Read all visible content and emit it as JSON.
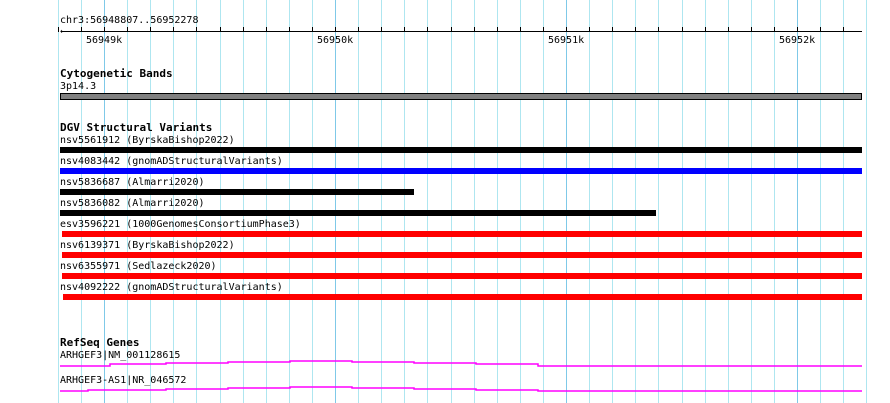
{
  "ruler": {
    "region": "chr3:56948807..56952278",
    "start": 56948807,
    "end": 56952278,
    "labels": [
      "56949k",
      "56950k",
      "56951k",
      "56952k"
    ]
  },
  "tracks": {
    "cyto": {
      "title": "Cytogenetic Bands",
      "band": "3p14.3",
      "color": "#808080"
    },
    "dgv": {
      "title": "DGV Structural Variants",
      "items": [
        {
          "label": "nsv5561912 (ByrskaBishop2022)",
          "color": "#000000",
          "start": 56948807,
          "end": 56952278
        },
        {
          "label": "nsv4083442 (gnomADStructuralVariants)",
          "color": "#0000ff",
          "start": 56948807,
          "end": 56952278
        },
        {
          "label": "nsv5836687 (Almarri2020)",
          "color": "#000000",
          "start": 56948807,
          "end": 56950340
        },
        {
          "label": "nsv5836082 (Almarri2020)",
          "color": "#000000",
          "start": 56948807,
          "end": 56951388
        },
        {
          "label": "esv3596221 (1000GenomesConsortiumPhase3)",
          "color": "#ff0000",
          "start": 56948815,
          "end": 56952278
        },
        {
          "label": "nsv6139371 (ByrskaBishop2022)",
          "color": "#ff0000",
          "start": 56948815,
          "end": 56952278
        },
        {
          "label": "nsv6355971 (Sedlazeck2020)",
          "color": "#ff0000",
          "start": 56948815,
          "end": 56952278
        },
        {
          "label": "nsv4092222 (gnomADStructuralVariants)",
          "color": "#ff0000",
          "start": 56948820,
          "end": 56952278
        }
      ]
    },
    "refseq": {
      "title": "RefSeq Genes",
      "color": "#ff00ff",
      "items": [
        {
          "label": "ARHGEF3|NM_001128615"
        },
        {
          "label": "ARHGEF3-AS1|NR_046572"
        }
      ]
    }
  }
}
